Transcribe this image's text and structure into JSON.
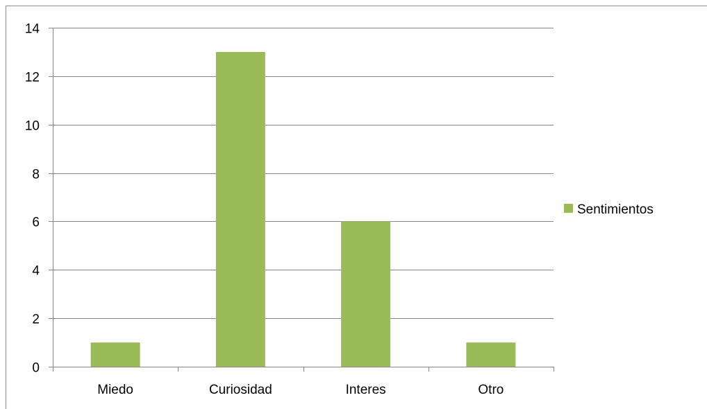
{
  "chart_data": {
    "type": "bar",
    "categories": [
      "Miedo",
      "Curiosidad",
      "Interes",
      "Otro"
    ],
    "series": [
      {
        "name": "Sentimientos",
        "values": [
          1,
          13,
          6,
          1
        ],
        "color": "#9bbb59"
      }
    ],
    "ylim": [
      0,
      14
    ],
    "yticks": [
      0,
      2,
      4,
      6,
      8,
      10,
      12,
      14
    ],
    "grid": true,
    "legend_position": "right",
    "gridline_color": "#868686",
    "axis_color": "#868686"
  }
}
